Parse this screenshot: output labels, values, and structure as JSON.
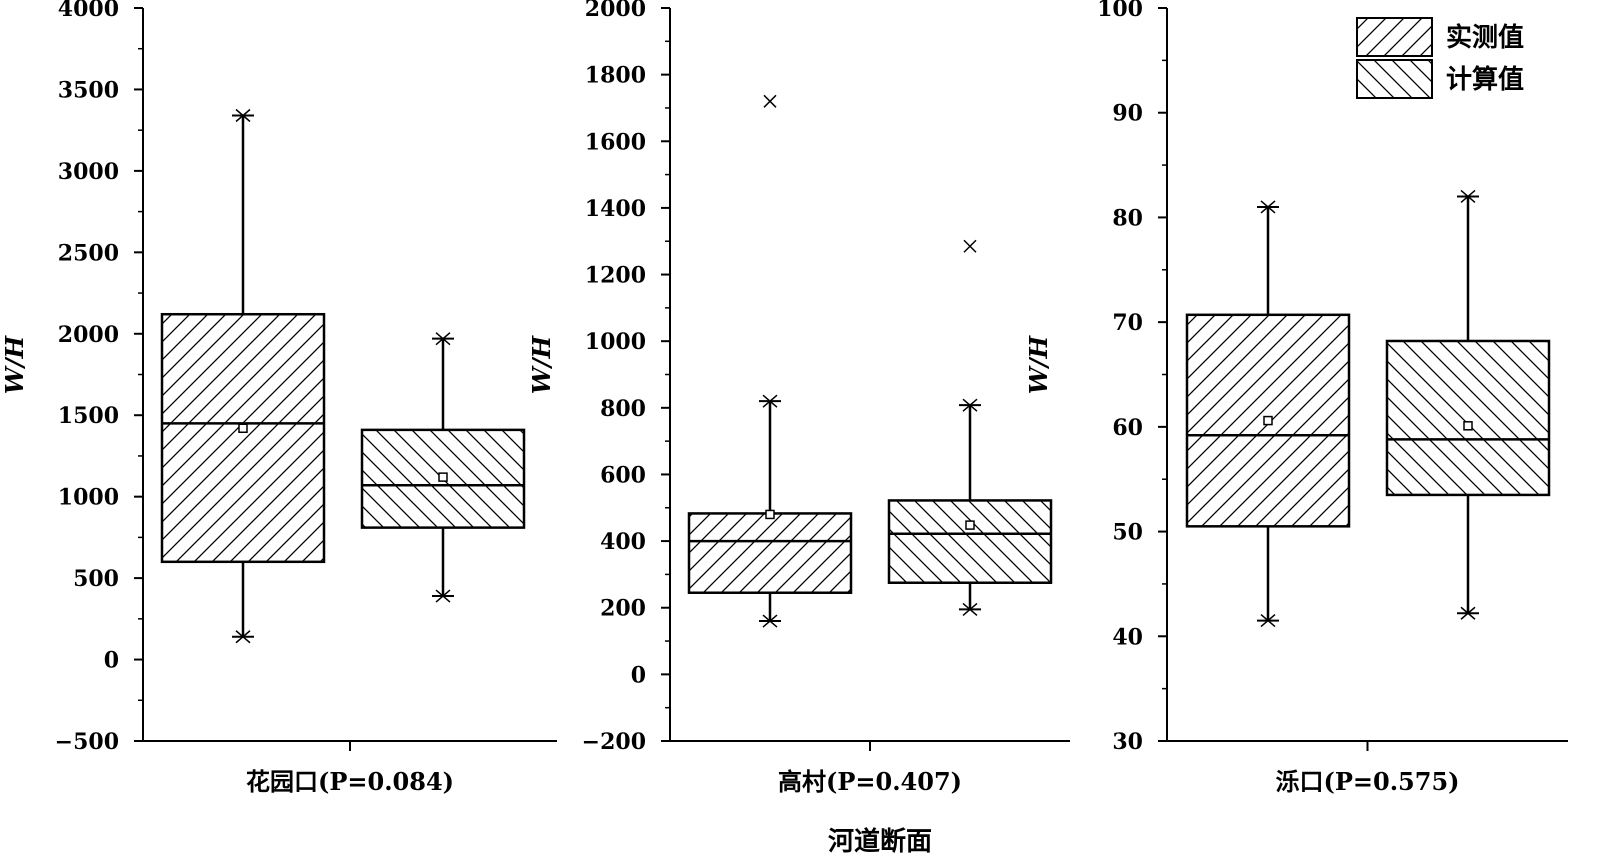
{
  "figure": {
    "x_title": "河道断面",
    "legend": [
      {
        "label": "实测值",
        "hatch": "forward"
      },
      {
        "label": "计算值",
        "hatch": "backward"
      }
    ]
  },
  "chart_data": [
    {
      "type": "box",
      "category": "花园口(P=0.084)",
      "ylabel": "W/H",
      "ylim": [
        -500,
        4000
      ],
      "yticks": [
        -500,
        0,
        500,
        1000,
        1500,
        2000,
        2500,
        3000,
        3500,
        4000
      ],
      "tick_labels": [
        "−500",
        "0",
        "500",
        "1000",
        "1500",
        "2000",
        "2500",
        "3000",
        "3500",
        "4000"
      ],
      "series": [
        {
          "name": "实测值",
          "min": 140,
          "q1": 600,
          "median": 1450,
          "q3": 2120,
          "max": 3340,
          "mean": 1420,
          "outliers": []
        },
        {
          "name": "计算值",
          "min": 390,
          "q1": 810,
          "median": 1070,
          "q3": 1410,
          "max": 1970,
          "mean": 1120,
          "outliers": []
        }
      ]
    },
    {
      "type": "box",
      "category": "高村(P=0.407)",
      "ylabel": "W/H",
      "ylim": [
        -200,
        2000
      ],
      "yticks": [
        -200,
        0,
        200,
        400,
        600,
        800,
        1000,
        1200,
        1400,
        1600,
        1800,
        2000
      ],
      "tick_labels": [
        "−200",
        "0",
        "200",
        "400",
        "600",
        "800",
        "1000",
        "1200",
        "1400",
        "1600",
        "1800",
        "2000"
      ],
      "series": [
        {
          "name": "实测值",
          "min": 160,
          "q1": 245,
          "median": 400,
          "q3": 483,
          "max": 820,
          "mean": 480,
          "outliers": [
            1720
          ]
        },
        {
          "name": "计算值",
          "min": 195,
          "q1": 275,
          "median": 422,
          "q3": 522,
          "max": 808,
          "mean": 448,
          "outliers": [
            1285
          ]
        }
      ]
    },
    {
      "type": "box",
      "category": "泺口(P=0.575)",
      "ylabel": "W/H",
      "ylim": [
        30,
        100
      ],
      "yticks": [
        30,
        40,
        50,
        60,
        70,
        80,
        90,
        100
      ],
      "tick_labels": [
        "30",
        "40",
        "50",
        "60",
        "70",
        "80",
        "90",
        "100"
      ],
      "series": [
        {
          "name": "实测值",
          "min": 41.5,
          "q1": 50.5,
          "median": 59.2,
          "q3": 70.7,
          "max": 81,
          "mean": 60.6,
          "outliers": []
        },
        {
          "name": "计算值",
          "min": 42.2,
          "q1": 53.5,
          "median": 58.8,
          "q3": 68.2,
          "max": 82,
          "mean": 60.1,
          "outliers": []
        }
      ]
    }
  ]
}
